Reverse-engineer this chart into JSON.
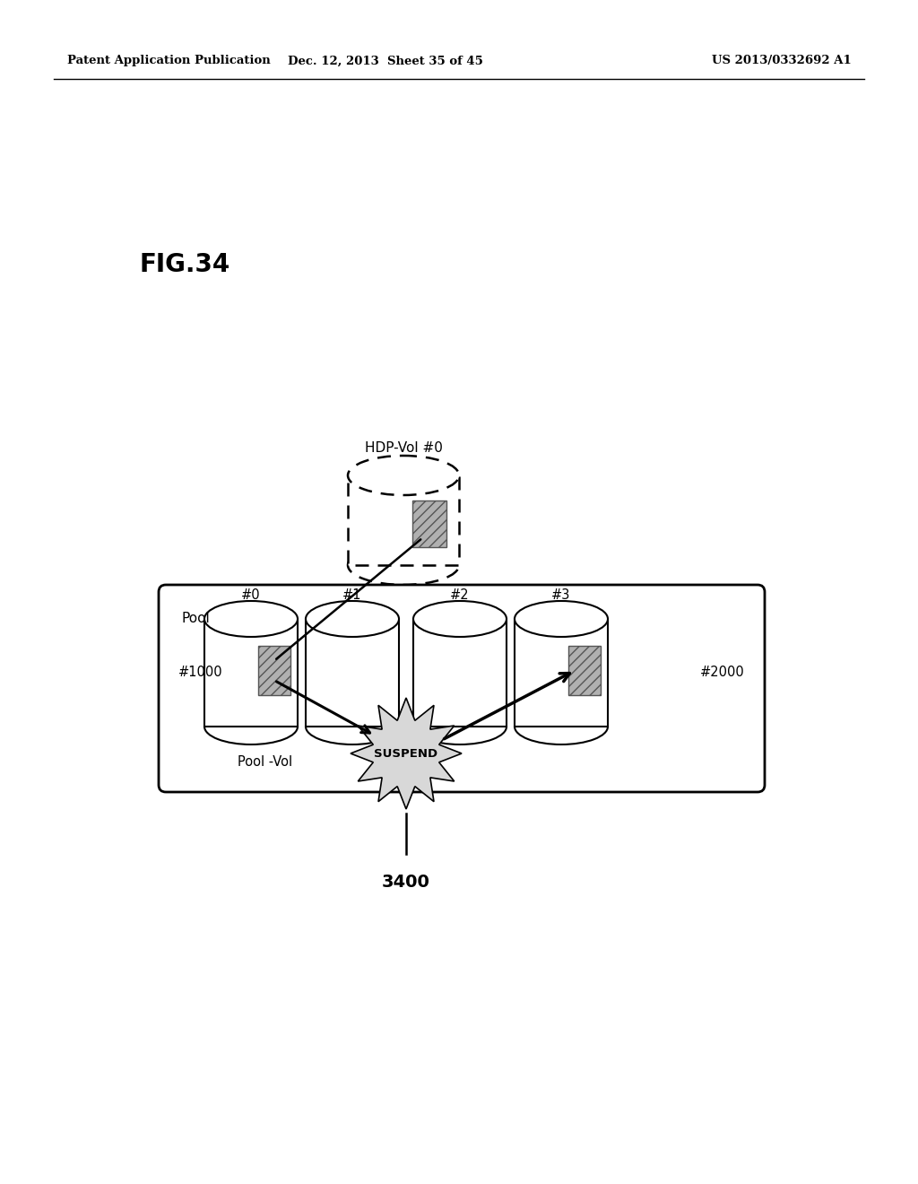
{
  "bg_color": "#ffffff",
  "header_left": "Patent Application Publication",
  "header_mid": "Dec. 12, 2013  Sheet 35 of 45",
  "header_right": "US 2013/0332692 A1",
  "fig_label": "FIG.34",
  "hdp_vol_label": "HDP-Vol #0",
  "pool_label": "Pool",
  "pool_vol_label": "Pool -Vol",
  "cylinder_labels": [
    "#0",
    "#1",
    "#2",
    "#3"
  ],
  "left_label": "#1000",
  "right_label": "#2000",
  "suspend_label": "SUSPEND",
  "bottom_label": "3400"
}
